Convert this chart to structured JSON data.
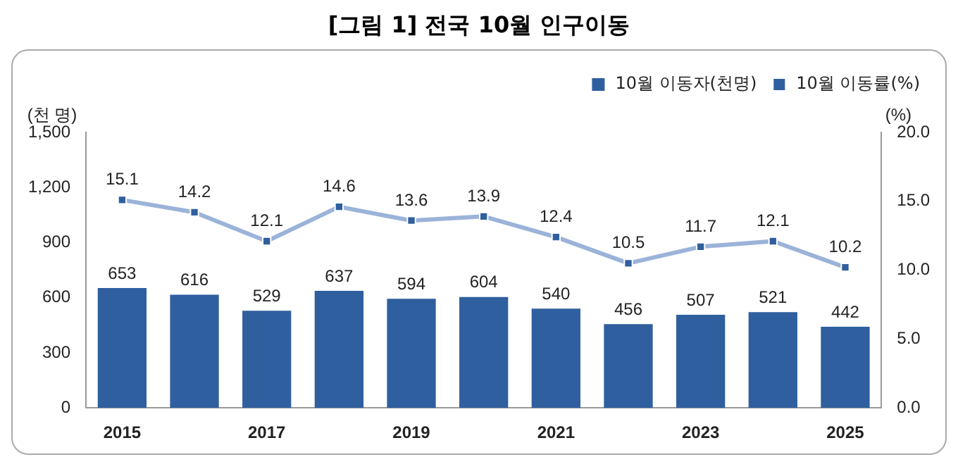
{
  "chart_data": {
    "type": "bar",
    "title": "[그림 1] 전국 10월 인구이동",
    "ylabel": "(천 명)",
    "y2label": "(%)",
    "categories": [
      "2015",
      null,
      "2017",
      null,
      "2019",
      null,
      "2021",
      null,
      "2023",
      null,
      "2025"
    ],
    "series": [
      {
        "name": "10월 이동자(천명)",
        "color": "#2f5f9e",
        "values": [
          653,
          616,
          529,
          637,
          594,
          604,
          540,
          456,
          507,
          521,
          442
        ]
      },
      {
        "name": "10월 이동률(%)",
        "type": "line",
        "axis": "y2",
        "color": "#9bb3d9",
        "marker": "square",
        "values": [
          15.1,
          14.2,
          12.1,
          14.6,
          13.6,
          13.9,
          12.4,
          10.5,
          11.7,
          12.1,
          10.2
        ]
      }
    ],
    "ylim": [
      0,
      1500
    ],
    "yticks": [
      0,
      300,
      600,
      900,
      {
        "value": 1200,
        "label": "1,200"
      },
      {
        "value": 1500,
        "label": "1,500"
      }
    ],
    "y2lim": [
      0,
      20
    ],
    "y2ticks": [
      {
        "value": 0,
        "label": "0.0"
      },
      {
        "value": 5,
        "label": "5.0"
      },
      {
        "value": 10,
        "label": "10.0"
      },
      {
        "value": 15,
        "label": "15.0"
      },
      {
        "value": 20,
        "label": "20.0"
      }
    ],
    "data_labels": true,
    "legend": "top right"
  }
}
